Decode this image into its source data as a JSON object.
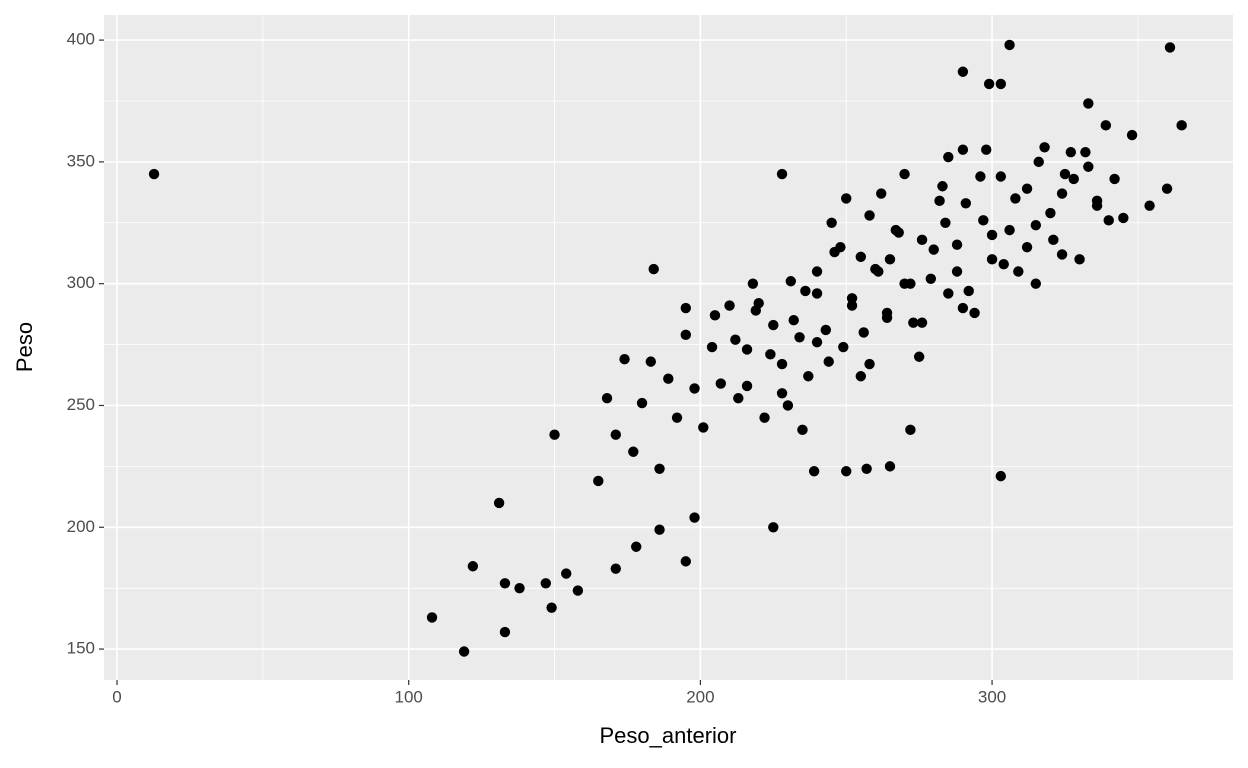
{
  "chart_data": {
    "type": "scatter",
    "x_label": "Peso_anterior",
    "y_label": "Peso",
    "color": "#000000",
    "grid": true,
    "xlim": [
      -4.46,
      382.6
    ],
    "ylim": [
      137.3,
      410.3
    ],
    "xticks": [
      0,
      100,
      200,
      300
    ],
    "yticks": [
      150,
      200,
      250,
      300,
      350,
      400
    ],
    "xminor": [
      50,
      150,
      250,
      350
    ],
    "yminor": [
      175,
      225,
      275,
      325,
      375
    ],
    "x": [
      12.7,
      119,
      108,
      122,
      133,
      133,
      138,
      149,
      147,
      158,
      154,
      171,
      178,
      186,
      195,
      198,
      225,
      303,
      272,
      265,
      257,
      250,
      239,
      184,
      195,
      228,
      306,
      361,
      290,
      299,
      303,
      360,
      365,
      354,
      333,
      150,
      131,
      165,
      168,
      171,
      174,
      177,
      180,
      183,
      186,
      189,
      192,
      195,
      198,
      201,
      204,
      207,
      210,
      213,
      216,
      219,
      222,
      225,
      228,
      231,
      234,
      237,
      240,
      243,
      246,
      249,
      252,
      255,
      258,
      261,
      264,
      267,
      270,
      273,
      276,
      279,
      282,
      285,
      288,
      291,
      294,
      297,
      300,
      303,
      306,
      309,
      312,
      315,
      318,
      321,
      324,
      327,
      330,
      333,
      336,
      339,
      342,
      345,
      348,
      212,
      216,
      220,
      224,
      228,
      232,
      236,
      240,
      244,
      248,
      252,
      256,
      260,
      264,
      268,
      272,
      276,
      280,
      284,
      288,
      292,
      296,
      300,
      304,
      308,
      312,
      316,
      320,
      324,
      328,
      332,
      336,
      340,
      262,
      270,
      285,
      290,
      245,
      250,
      255,
      275,
      230,
      218,
      205,
      258,
      283,
      298,
      315,
      325,
      290,
      265,
      240,
      235
    ],
    "y": [
      345,
      149,
      163,
      184,
      157,
      177,
      175,
      167,
      177,
      174,
      181,
      183,
      192,
      199,
      186,
      204,
      200,
      221,
      240,
      225,
      224,
      223,
      223,
      306,
      290,
      345,
      398,
      397,
      387,
      382,
      382,
      339,
      365,
      332,
      374,
      238,
      210,
      219,
      253,
      238,
      269,
      231,
      251,
      268,
      224,
      261,
      245,
      279,
      257,
      241,
      274,
      259,
      291,
      253,
      273,
      289,
      245,
      283,
      267,
      301,
      278,
      262,
      296,
      281,
      313,
      274,
      294,
      311,
      267,
      305,
      288,
      322,
      300,
      284,
      318,
      302,
      334,
      296,
      316,
      333,
      288,
      326,
      310,
      344,
      322,
      305,
      339,
      324,
      356,
      318,
      337,
      354,
      310,
      348,
      332,
      365,
      343,
      327,
      361,
      277,
      258,
      292,
      271,
      255,
      285,
      297,
      276,
      268,
      315,
      291,
      280,
      306,
      286,
      321,
      300,
      284,
      314,
      325,
      305,
      297,
      344,
      320,
      308,
      335,
      315,
      350,
      329,
      312,
      343,
      354,
      334,
      326,
      337,
      345,
      352,
      355,
      325,
      335,
      262,
      270,
      250,
      300,
      287,
      328,
      340,
      355,
      300,
      345,
      290,
      310,
      305,
      240
    ]
  }
}
